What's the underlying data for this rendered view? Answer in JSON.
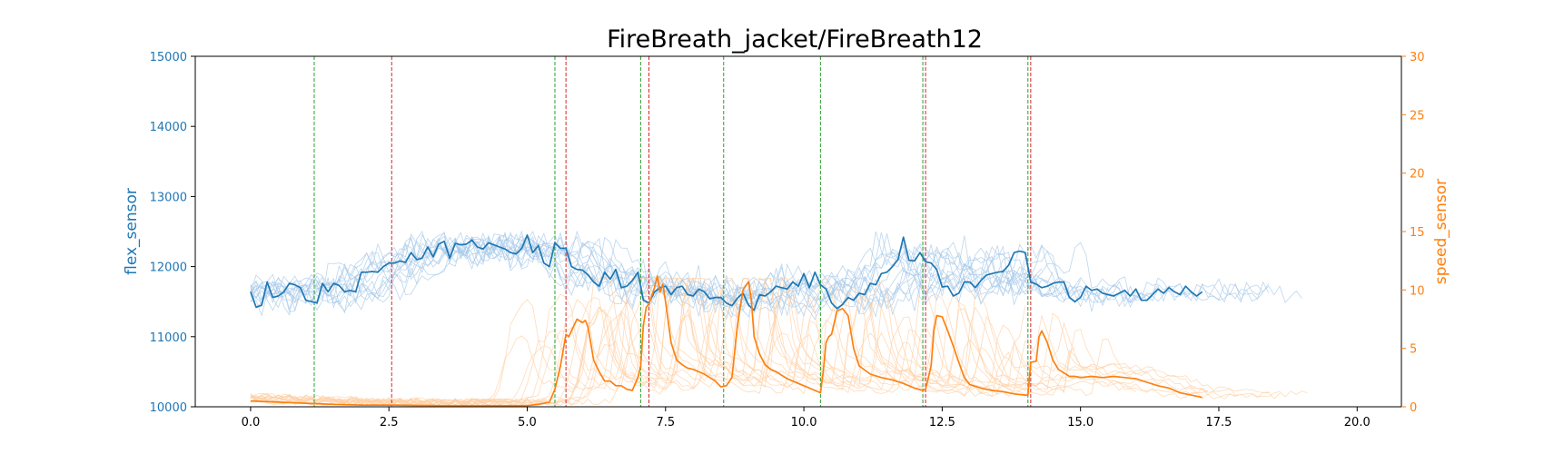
{
  "chart_data": {
    "type": "line",
    "title": "FireBreath_jacket/FireBreath12",
    "xlabel": "",
    "ylabel_left": "flex_sensor",
    "ylabel_right": "speed_sensor",
    "xlim": [
      -1,
      20.8
    ],
    "ylim_left": [
      10000,
      15000
    ],
    "ylim_right": [
      0,
      30
    ],
    "x_ticks": [
      "0.0",
      "2.5",
      "5.0",
      "7.5",
      "10.0",
      "12.5",
      "15.0",
      "17.5",
      "20.0"
    ],
    "x_tick_values": [
      0,
      2.5,
      5,
      7.5,
      10,
      12.5,
      15,
      17.5,
      20
    ],
    "y_left_ticks": [
      "10000",
      "11000",
      "12000",
      "13000",
      "14000",
      "15000"
    ],
    "y_left_tick_values": [
      10000,
      11000,
      12000,
      13000,
      14000,
      15000
    ],
    "y_right_ticks": [
      "0",
      "5",
      "10",
      "15",
      "20",
      "25",
      "30"
    ],
    "y_right_tick_values": [
      0,
      5,
      10,
      15,
      20,
      25,
      30
    ],
    "grid": false,
    "colors": {
      "flex": "#1f77b4",
      "speed": "#ff7f0e",
      "flex_faint": "#a6c8e8",
      "speed_faint": "#ffcfa3",
      "start_line": "#2ca02c",
      "end_line": "#d62728",
      "left_axis_text": "#1f77b4",
      "right_axis_text": "#ff7f0e"
    },
    "vlines_green": [
      1.15,
      5.5,
      7.05,
      8.55,
      10.3,
      12.15,
      14.05
    ],
    "vlines_red": [
      2.55,
      5.7,
      7.2,
      12.2,
      14.1
    ],
    "series": [
      {
        "axis": "left",
        "role": "flex_main",
        "x": [
          0.0,
          0.1,
          0.2,
          0.3,
          0.4,
          0.5,
          0.6,
          0.7,
          0.8,
          0.9,
          1.0,
          1.1,
          1.2,
          1.3,
          1.4,
          1.5,
          1.6,
          1.7,
          1.8,
          1.9,
          2.0,
          2.1,
          2.2,
          2.3,
          2.4,
          2.5,
          2.6,
          2.7,
          2.8,
          2.9,
          3.0,
          3.1,
          3.2,
          3.3,
          3.4,
          3.5,
          3.6,
          3.7,
          3.8,
          3.9,
          4.0,
          4.1,
          4.2,
          4.3,
          4.4,
          4.5,
          4.6,
          4.7,
          4.8,
          4.9,
          5.0,
          5.1,
          5.2,
          5.3,
          5.4,
          5.5,
          5.6,
          5.7,
          5.8,
          5.9,
          6.0,
          6.1,
          6.2,
          6.3,
          6.4,
          6.5,
          6.6,
          6.7,
          6.8,
          6.9,
          7.0,
          7.1,
          7.2,
          7.3,
          7.4,
          7.5,
          7.6,
          7.7,
          7.8,
          7.9,
          8.0,
          8.1,
          8.2,
          8.3,
          8.4,
          8.5,
          8.6,
          8.7,
          8.8,
          8.9,
          9.0,
          9.1,
          9.2,
          9.3,
          9.4,
          9.5,
          9.6,
          9.7,
          9.8,
          9.9,
          10.0,
          10.1,
          10.2,
          10.3,
          10.4,
          10.5,
          10.6,
          10.7,
          10.8,
          10.9,
          11.0,
          11.1,
          11.2,
          11.3,
          11.4,
          11.5,
          11.6,
          11.7,
          11.8,
          11.9,
          12.0,
          12.1,
          12.2,
          12.3,
          12.4,
          12.5,
          12.6,
          12.7,
          12.8,
          12.9,
          13.0,
          13.1,
          13.2,
          13.3,
          13.4,
          13.5,
          13.6,
          13.7,
          13.8,
          13.9,
          14.0,
          14.1,
          14.2,
          14.3,
          14.4,
          14.5,
          14.6,
          14.7,
          14.8,
          14.9,
          15.0,
          15.1,
          15.2,
          15.3,
          15.4,
          15.5,
          15.6,
          15.7,
          15.8,
          15.9,
          16.0,
          16.1,
          16.2,
          16.3,
          16.4,
          16.5,
          16.6,
          16.7,
          16.8,
          16.9,
          17.0,
          17.1,
          17.2
        ],
        "y": [
          11640,
          11420,
          11450,
          11780,
          11560,
          11580,
          11640,
          11760,
          11740,
          11700,
          11520,
          11500,
          11480,
          11760,
          11640,
          11760,
          11730,
          11640,
          11660,
          11640,
          11920,
          11920,
          11930,
          11920,
          12000,
          12050,
          12050,
          12080,
          12060,
          12200,
          12100,
          12120,
          12280,
          12140,
          12320,
          12360,
          12120,
          12330,
          12310,
          12320,
          12380,
          12280,
          12250,
          12340,
          12310,
          12280,
          12250,
          12200,
          12180,
          12260,
          12450,
          12200,
          12300,
          12050,
          12000,
          12340,
          12260,
          12260,
          12000,
          11960,
          11950,
          11880,
          11780,
          11720,
          11920,
          11820,
          11960,
          11700,
          11720,
          11800,
          11920,
          11520,
          11480,
          11640,
          11700,
          11720,
          11600,
          11700,
          11720,
          11600,
          11580,
          11680,
          11640,
          11540,
          11560,
          11560,
          11480,
          11440,
          11550,
          11620,
          11450,
          11380,
          11600,
          11580,
          11640,
          11720,
          11700,
          11680,
          11780,
          11720,
          11900,
          11700,
          11920,
          11740,
          11680,
          11480,
          11400,
          11460,
          11560,
          11520,
          11620,
          11600,
          11760,
          11740,
          11900,
          11920,
          12000,
          12100,
          12420,
          12090,
          12080,
          12200,
          12070,
          12050,
          11960,
          11710,
          11720,
          11580,
          11620,
          11780,
          11780,
          11700,
          11800,
          11880,
          11900,
          11920,
          11930,
          12020,
          12200,
          12220,
          12200,
          11780,
          11750,
          11700,
          11720,
          11760,
          11780,
          11780,
          11560,
          11500,
          11560,
          11720,
          11660,
          11680,
          11620,
          11600,
          11580,
          11620,
          11660,
          11580,
          11680,
          11520,
          11520,
          11600,
          11680,
          11620,
          11700,
          11640,
          11600,
          11720,
          11640,
          11580,
          11640
        ]
      },
      {
        "axis": "right",
        "role": "speed_main",
        "x": [
          0.0,
          0.5,
          1.0,
          1.5,
          2.0,
          2.5,
          3.0,
          3.5,
          4.0,
          4.5,
          5.0,
          5.2,
          5.4,
          5.5,
          5.6,
          5.7,
          5.75,
          5.8,
          5.9,
          6.0,
          6.05,
          6.1,
          6.2,
          6.3,
          6.4,
          6.5,
          6.6,
          6.7,
          6.8,
          6.9,
          7.0,
          7.05,
          7.1,
          7.15,
          7.2,
          7.3,
          7.35,
          7.4,
          7.45,
          7.5,
          7.6,
          7.7,
          7.8,
          7.9,
          8.0,
          8.1,
          8.2,
          8.3,
          8.4,
          8.5,
          8.6,
          8.7,
          8.8,
          8.9,
          9.0,
          9.05,
          9.1,
          9.2,
          9.3,
          9.4,
          9.5,
          9.6,
          9.7,
          9.8,
          9.9,
          10.0,
          10.1,
          10.2,
          10.3,
          10.35,
          10.4,
          10.45,
          10.5,
          10.6,
          10.7,
          10.8,
          10.9,
          11.0,
          11.2,
          11.4,
          11.6,
          11.8,
          12.0,
          12.15,
          12.2,
          12.3,
          12.35,
          12.4,
          12.5,
          12.6,
          12.7,
          12.8,
          12.9,
          13.0,
          13.2,
          13.4,
          13.6,
          13.8,
          14.0,
          14.05,
          14.1,
          14.2,
          14.25,
          14.3,
          14.4,
          14.5,
          14.6,
          14.7,
          14.8,
          14.9,
          15.0,
          15.2,
          15.4,
          15.6,
          15.8,
          16.0,
          16.2,
          16.4,
          16.6,
          16.8,
          17.0,
          17.2
        ],
        "y": [
          0.5,
          0.4,
          0.3,
          0.2,
          0.15,
          0.15,
          0.12,
          0.1,
          0.1,
          0.1,
          0.1,
          0.2,
          0.4,
          1.5,
          3.5,
          6.2,
          6.0,
          6.5,
          7.5,
          7.2,
          7.4,
          6.8,
          4.0,
          3.0,
          2.2,
          2.2,
          1.8,
          1.8,
          1.5,
          1.4,
          2.5,
          3.5,
          7.0,
          8.5,
          8.8,
          10.2,
          11.2,
          9.8,
          10.5,
          9.0,
          5.5,
          4.0,
          3.6,
          3.3,
          3.2,
          3.0,
          2.8,
          2.5,
          2.2,
          1.7,
          1.8,
          2.5,
          7.0,
          10.0,
          10.7,
          9.2,
          6.0,
          4.5,
          3.6,
          3.2,
          3.0,
          2.7,
          2.4,
          2.2,
          2.0,
          1.8,
          1.6,
          1.4,
          1.2,
          3.0,
          5.5,
          6.0,
          6.2,
          8.2,
          8.4,
          7.8,
          5.0,
          3.5,
          2.8,
          2.5,
          2.3,
          2.0,
          1.6,
          1.4,
          1.5,
          3.5,
          6.5,
          7.8,
          7.7,
          6.5,
          5.2,
          3.8,
          2.5,
          1.9,
          1.6,
          1.4,
          1.3,
          1.1,
          1.0,
          1.0,
          3.8,
          3.9,
          6.0,
          6.5,
          5.5,
          4.0,
          3.2,
          2.9,
          2.6,
          2.6,
          2.5,
          2.6,
          2.5,
          2.6,
          2.5,
          2.4,
          2.1,
          1.8,
          1.6,
          1.2,
          1.0,
          0.8
        ]
      }
    ]
  }
}
